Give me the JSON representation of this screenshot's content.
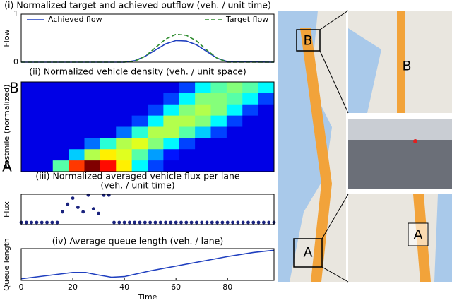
{
  "chart_data": [
    {
      "type": "line",
      "title": "(i) Normalized target and achieved outflow (veh. / unit time)",
      "ylabel": "Flow",
      "xlim": [
        0,
        98
      ],
      "ylim": [
        0,
        1
      ],
      "yticks": [
        0,
        1
      ],
      "series": [
        {
          "name": "Achieved flow",
          "color": "#1f3fbf",
          "style": "solid",
          "x": [
            0,
            40,
            44,
            48,
            52,
            56,
            60,
            64,
            68,
            72,
            76,
            80,
            98
          ],
          "values": [
            0,
            0,
            0.03,
            0.12,
            0.25,
            0.38,
            0.45,
            0.44,
            0.36,
            0.22,
            0.08,
            0.01,
            0
          ]
        },
        {
          "name": "Target flow",
          "color": "#2e8b2e",
          "style": "dashed",
          "x": [
            0,
            40,
            44,
            48,
            52,
            56,
            60,
            64,
            68,
            72,
            76,
            80,
            98
          ],
          "values": [
            0,
            0,
            0.02,
            0.12,
            0.3,
            0.48,
            0.58,
            0.56,
            0.44,
            0.25,
            0.08,
            0,
            0
          ]
        }
      ]
    },
    {
      "type": "heatmap",
      "title": "(ii) Normalized vehicle density (veh. / unit space)",
      "ylabel": "Postmile (normalized)",
      "ylabels": [
        "B",
        "A"
      ],
      "zlim": [
        0,
        1
      ],
      "z": [
        [
          0,
          0,
          0,
          0,
          0,
          0,
          0,
          0,
          0,
          0,
          0.1,
          0.3,
          0.4,
          0.45,
          0.4,
          0.3
        ],
        [
          0,
          0,
          0,
          0,
          0,
          0,
          0,
          0,
          0,
          0.1,
          0.3,
          0.45,
          0.45,
          0.4,
          0.3,
          0.1
        ],
        [
          0,
          0,
          0,
          0,
          0,
          0,
          0,
          0,
          0.1,
          0.3,
          0.45,
          0.5,
          0.45,
          0.3,
          0.1,
          0
        ],
        [
          0,
          0,
          0,
          0,
          0,
          0,
          0,
          0.1,
          0.3,
          0.5,
          0.5,
          0.45,
          0.3,
          0.1,
          0,
          0
        ],
        [
          0,
          0,
          0,
          0,
          0,
          0,
          0.15,
          0.35,
          0.5,
          0.5,
          0.4,
          0.25,
          0.1,
          0,
          0,
          0
        ],
        [
          0,
          0,
          0,
          0,
          0.15,
          0.35,
          0.5,
          0.55,
          0.45,
          0.3,
          0.1,
          0,
          0,
          0,
          0,
          0
        ],
        [
          0,
          0,
          0,
          0.25,
          0.5,
          0.6,
          0.55,
          0.4,
          0.2,
          0.05,
          0,
          0,
          0,
          0,
          0,
          0
        ],
        [
          0,
          0,
          0.4,
          0.8,
          1.0,
          0.85,
          0.6,
          0.3,
          0.1,
          0,
          0,
          0,
          0,
          0,
          0,
          0
        ]
      ]
    },
    {
      "type": "scatter",
      "title": "(iii) Normalized averaged vehicle flux per lane",
      "subtitle": "(veh. / unit time)",
      "ylabel": "Flux",
      "xlim": [
        0,
        98
      ],
      "ylim": [
        0,
        1
      ],
      "color": "#1a237e",
      "x": [
        0,
        2,
        4,
        6,
        8,
        10,
        12,
        14,
        16,
        18,
        20,
        22,
        24,
        26,
        28,
        30,
        32,
        34,
        36,
        38,
        40,
        42,
        44,
        46,
        48,
        50,
        52,
        54,
        56,
        58,
        60,
        62,
        64,
        66,
        68,
        70,
        72,
        74,
        76,
        78,
        80,
        82,
        84,
        86,
        88,
        90,
        92,
        94,
        96,
        98
      ],
      "values": [
        0,
        0,
        0,
        0,
        0,
        0,
        0,
        0,
        0.35,
        0.6,
        0.8,
        0.5,
        0.35,
        0.9,
        0.45,
        0.3,
        0.9,
        0.9,
        0,
        0,
        0,
        0,
        0,
        0,
        0,
        0,
        0,
        0,
        0,
        0,
        0,
        0,
        0,
        0,
        0,
        0,
        0,
        0,
        0,
        0,
        0,
        0,
        0,
        0,
        0,
        0,
        0,
        0,
        0,
        0
      ]
    },
    {
      "type": "line",
      "title": "(iv) Average queue length (veh. / lane)",
      "ylabel": "Queue length",
      "xlabel": "Time",
      "xlim": [
        0,
        98
      ],
      "ylim": [
        0,
        1
      ],
      "xticks": [
        0,
        20,
        40,
        60,
        80
      ],
      "series": [
        {
          "color": "#1f3fbf",
          "style": "solid",
          "x": [
            0,
            5,
            10,
            15,
            20,
            25,
            28,
            30,
            35,
            40,
            50,
            60,
            70,
            80,
            90,
            98
          ],
          "values": [
            0.05,
            0.1,
            0.15,
            0.2,
            0.25,
            0.25,
            0.2,
            0.17,
            0.1,
            0.12,
            0.3,
            0.45,
            0.6,
            0.75,
            0.88,
            0.95
          ]
        }
      ]
    }
  ],
  "map": {
    "labels": [
      "B",
      "B",
      "A",
      "A"
    ]
  }
}
